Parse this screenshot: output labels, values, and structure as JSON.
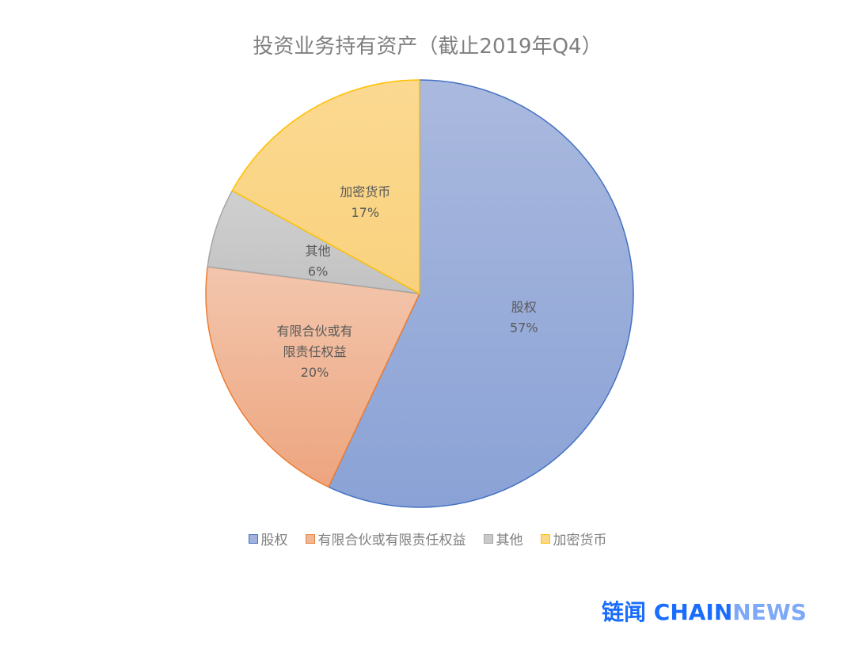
{
  "chart_data": {
    "type": "pie",
    "title": "投资业务持有资产（截止2019年Q4）",
    "slices": [
      {
        "label": "股权",
        "value": 57,
        "value_label": "57%",
        "fill_top": "#aab9de",
        "fill_bottom": "#8aa2d6",
        "stroke": "#4472c4"
      },
      {
        "label": "有限合伙或有限责任权益",
        "label_lines": [
          "有限合伙或有",
          "限责任权益"
        ],
        "value": 20,
        "value_label": "20%",
        "fill_top": "#f3c6ad",
        "fill_bottom": "#eda57f",
        "stroke": "#ed7d31"
      },
      {
        "label": "其他",
        "value": 6,
        "value_label": "6%",
        "fill_top": "#d0d0d0",
        "fill_bottom": "#c2c2c2",
        "stroke": "#a5a5a5"
      },
      {
        "label": "加密货币",
        "value": 17,
        "value_label": "17%",
        "fill_top": "#fbd991",
        "fill_bottom": "#f9d27e",
        "stroke": "#ffc000"
      }
    ],
    "start": "top",
    "direction": "clockwise",
    "legend_position": "bottom"
  },
  "legend": [
    "股权",
    "有限合伙或有限责任权益",
    "其他",
    "加密货币"
  ],
  "watermark": {
    "cn": "链闻",
    "brand_a": "CHAIN",
    "brand_b": "NEWS"
  }
}
